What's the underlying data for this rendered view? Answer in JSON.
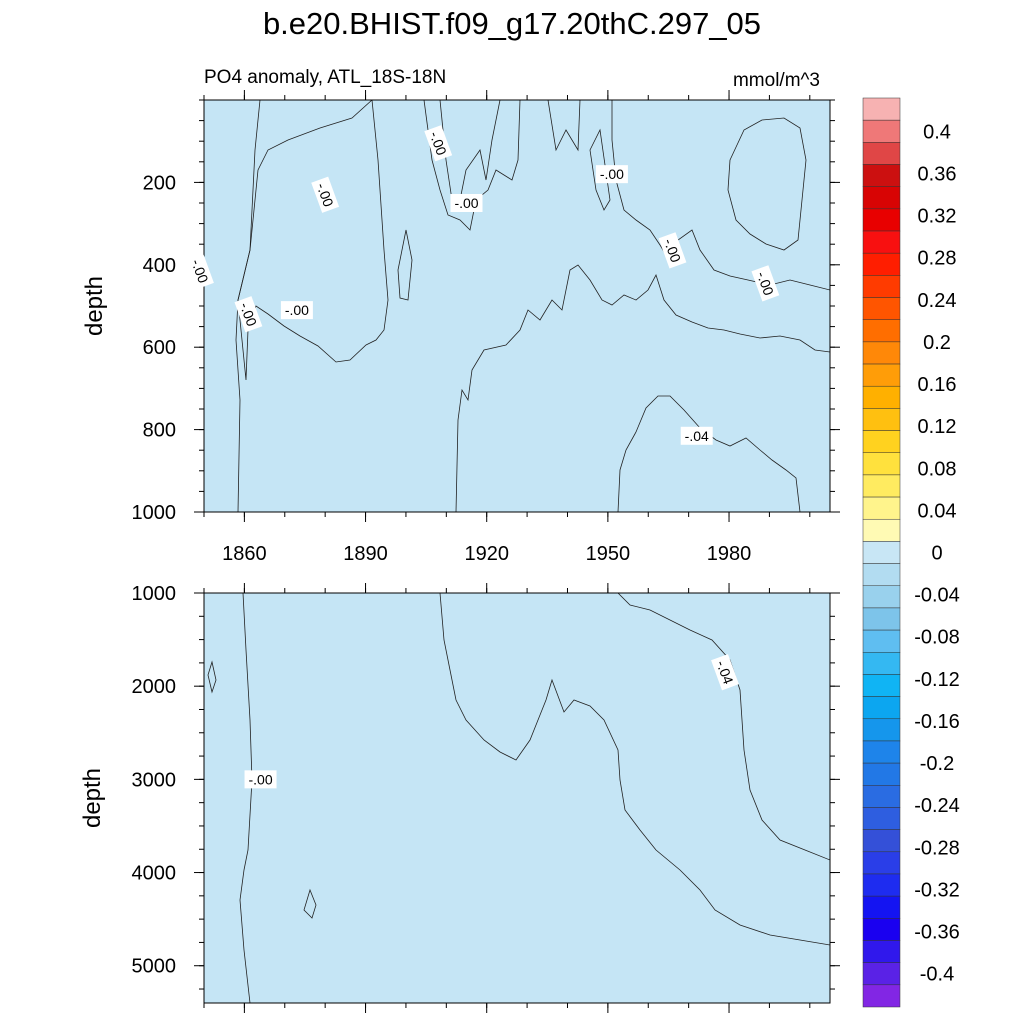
{
  "title": "b.e20.BHIST.f09_g17.20thC.297_05",
  "chart_data": {
    "type": "heatmap",
    "field_label": "PO4 anomaly, ATL_18S-18N",
    "units": "mmol/m^3",
    "xlim": [
      1850,
      2005
    ],
    "x_ticks": [
      1860,
      1890,
      1920,
      1950,
      1980
    ],
    "panels": [
      {
        "id": "upper",
        "ylabel": "depth",
        "ylim": [
          0,
          1000
        ],
        "y_ticks": [
          200,
          400,
          600,
          800,
          1000
        ],
        "contour_labels": [
          {
            "text": "-.00",
            "x": 1873,
            "y": 510
          },
          {
            "text": "-.00",
            "x": 1880,
            "y": 230
          },
          {
            "text": "-.00",
            "x": 1908,
            "y": 105
          },
          {
            "text": "-.00",
            "x": 1915,
            "y": 250
          },
          {
            "text": "-.00",
            "x": 1849,
            "y": 415
          },
          {
            "text": "-.00",
            "x": 1861,
            "y": 520
          },
          {
            "text": "-.00",
            "x": 1951,
            "y": 180
          },
          {
            "text": "-.00",
            "x": 1966,
            "y": 365
          },
          {
            "text": "-.00",
            "x": 1989,
            "y": 445
          },
          {
            "text": "-.04",
            "x": 1972,
            "y": 815
          }
        ]
      },
      {
        "id": "lower",
        "ylabel": "depth",
        "ylim": [
          1000,
          5400
        ],
        "y_ticks": [
          1000,
          2000,
          3000,
          4000,
          5000
        ],
        "contour_labels": [
          {
            "text": "-.00",
            "x": 1864,
            "y": 3000
          },
          {
            "text": "-.04",
            "x": 1979,
            "y": 1850
          }
        ]
      }
    ],
    "colorbar": {
      "labels": [
        "0.4",
        "0.36",
        "0.32",
        "0.28",
        "0.24",
        "0.2",
        "0.16",
        "0.12",
        "0.08",
        "0.04",
        "0",
        "-0.04",
        "-0.08",
        "-0.12",
        "-0.16",
        "-0.2",
        "-0.24",
        "-0.28",
        "-0.32",
        "-0.36",
        "-0.4"
      ],
      "colors": [
        "#f7b2b2",
        "#ef7878",
        "#e04646",
        "#cc1010",
        "#d80404",
        "#e80000",
        "#f81010",
        "#ff1e00",
        "#ff3b00",
        "#ff5500",
        "#ff6e00",
        "#ff8808",
        "#ff9d08",
        "#ffb000",
        "#ffc010",
        "#ffd21f",
        "#ffe13d",
        "#ffeb60",
        "#fff48c",
        "#fffab4",
        "#c8e6f5",
        "#b2dcf1",
        "#99d1ed",
        "#7dc4ea",
        "#5fbef1",
        "#34b8f2",
        "#10b4f4",
        "#0ca6f0",
        "#1596ec",
        "#1e84ea",
        "#2278e6",
        "#2a6ce2",
        "#2e5ee0",
        "#3450d8",
        "#2a3ee8",
        "#1e2cf0",
        "#1414f2",
        "#1a00f0",
        "#3018ec",
        "#5a22e6",
        "#8226e4"
      ]
    },
    "colors": {
      "zero_to_neg_004": "#c5e5f5",
      "neg_004_to_neg_008": "#a5d6ef",
      "zero_to_pos_004": "#fffab4",
      "pos_004_to_pos_008": "#fff48c"
    }
  }
}
